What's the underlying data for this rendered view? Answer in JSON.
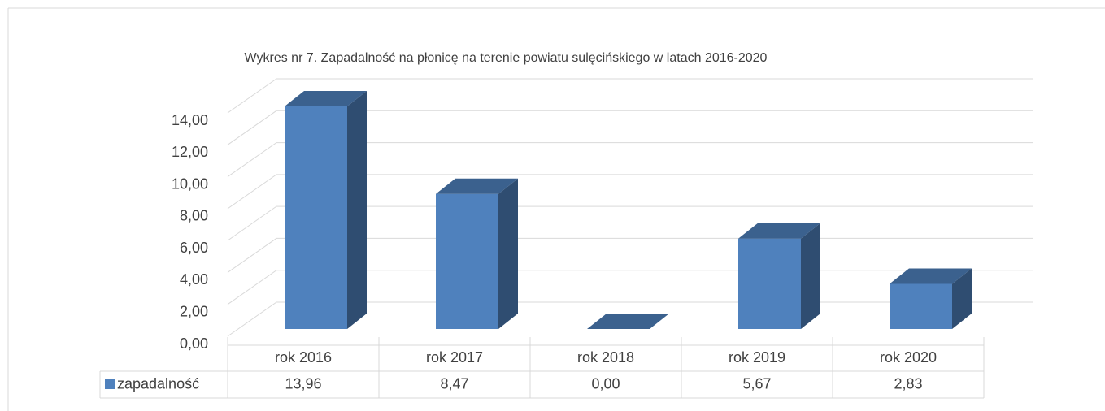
{
  "chart_data": {
    "type": "bar3d",
    "title": "Wykres nr 7. Zapadalność na płonicę na terenie powiatu sulęcińskiego w latach 2016-2020",
    "categories": [
      "rok 2016",
      "rok 2017",
      "rok 2018",
      "rok 2019",
      "rok 2020"
    ],
    "series": [
      {
        "name": "zapadalność",
        "color": "#4f81bd",
        "values": [
          13.96,
          8.47,
          0,
          5.67,
          2.83
        ],
        "value_labels": [
          "13,96",
          "8,47",
          "0,00",
          "5,67",
          "2,83"
        ]
      }
    ],
    "ylim": [
      0,
      14
    ],
    "yticks": [
      {
        "value": 0,
        "label": "0,00"
      },
      {
        "value": 2,
        "label": "2,00"
      },
      {
        "value": 4,
        "label": "4,00"
      },
      {
        "value": 6,
        "label": "6,00"
      },
      {
        "value": 8,
        "label": "8,00"
      },
      {
        "value": 10,
        "label": "10,00"
      },
      {
        "value": 12,
        "label": "12,00"
      },
      {
        "value": 14,
        "label": "14,00"
      }
    ],
    "grid": true
  }
}
